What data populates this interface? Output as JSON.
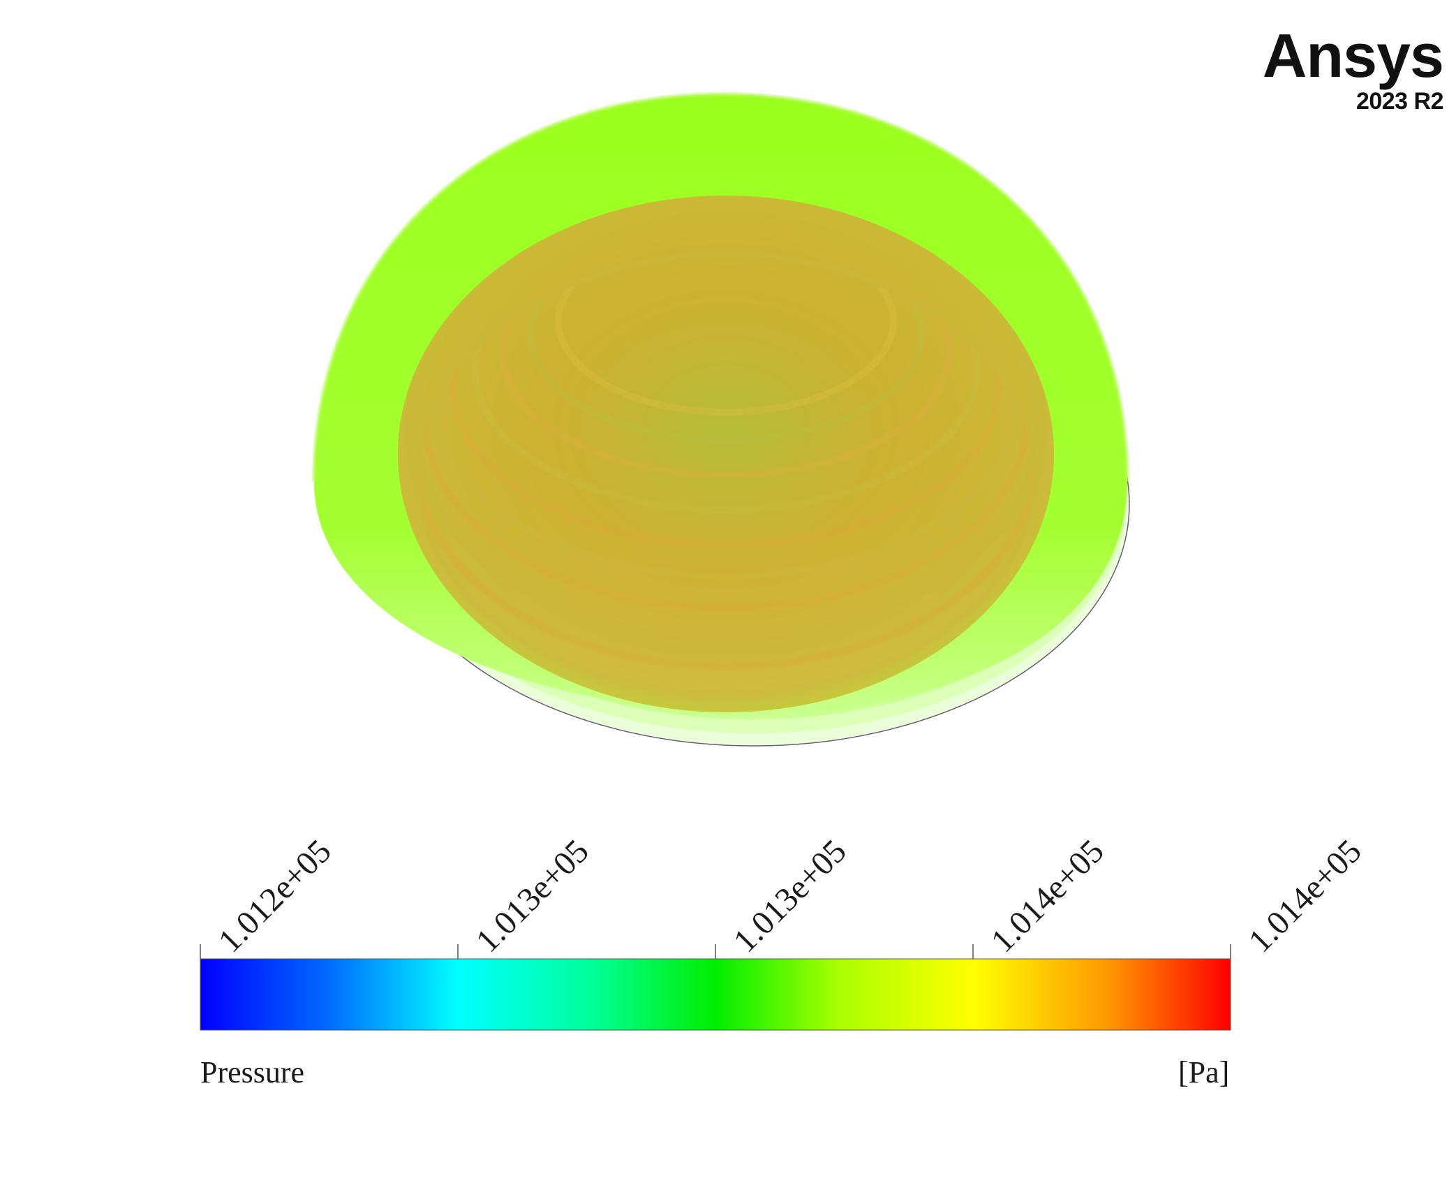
{
  "logo": {
    "brand": "Ansys",
    "version": "2023 R2"
  },
  "legend": {
    "title": "Pressure",
    "unit": "[Pa]",
    "tick_labels": [
      "1.012e+05",
      "1.013e+05",
      "1.013e+05",
      "1.014e+05",
      "1.014e+05"
    ],
    "colormap": [
      "#0000ff",
      "#00a8ff",
      "#00ffff",
      "#00ff99",
      "#00ee00",
      "#aaff00",
      "#ffff00",
      "#ff9900",
      "#ff0000"
    ]
  },
  "contour": {
    "field": "Pressure",
    "outer_color": "#9bff1e",
    "inner_color": "#d2a830",
    "base_color": "#e6ffcc"
  }
}
